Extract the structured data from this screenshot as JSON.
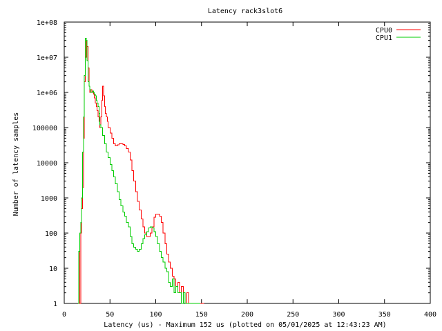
{
  "chart_data": {
    "type": "line",
    "title": "Latency rack3slot6",
    "xlabel": "Latency (us) - Maximum 152 us (plotted on 05/01/2025 at 12:43:23 AM)",
    "ylabel": "Number of latency samples",
    "xlim": [
      0,
      400
    ],
    "ylim": [
      1,
      100000000
    ],
    "y_scale": "log",
    "grid": false,
    "legend_position": "top-right",
    "x_ticks": [
      0,
      50,
      100,
      150,
      200,
      250,
      300,
      350,
      400
    ],
    "y_ticks": [
      {
        "value": 1,
        "label": "1"
      },
      {
        "value": 10,
        "label": "10"
      },
      {
        "value": 100,
        "label": "100"
      },
      {
        "value": 1000,
        "label": "1000"
      },
      {
        "value": 10000,
        "label": "10000"
      },
      {
        "value": 100000,
        "label": "100000"
      },
      {
        "value": 1000000,
        "label": "1e+06"
      },
      {
        "value": 10000000,
        "label": "1e+07"
      },
      {
        "value": 100000000,
        "label": "1e+08"
      }
    ],
    "series": [
      {
        "name": "CPU0",
        "color": "#ff0000",
        "points": [
          [
            15,
            1
          ],
          [
            16,
            30
          ],
          [
            17,
            1
          ],
          [
            18,
            100
          ],
          [
            19,
            500
          ],
          [
            20,
            2000
          ],
          [
            21,
            50000
          ],
          [
            22,
            2000000
          ],
          [
            23,
            10000000
          ],
          [
            24,
            30000000
          ],
          [
            25,
            20000000
          ],
          [
            26,
            5000000
          ],
          [
            27,
            1500000
          ],
          [
            28,
            1000000
          ],
          [
            29,
            1200000
          ],
          [
            30,
            1000000
          ],
          [
            31,
            1000000
          ],
          [
            32,
            900000
          ],
          [
            33,
            700000
          ],
          [
            34,
            500000
          ],
          [
            35,
            400000
          ],
          [
            36,
            300000
          ],
          [
            37,
            200000
          ],
          [
            38,
            150000
          ],
          [
            39,
            100000
          ],
          [
            40,
            200000
          ],
          [
            41,
            600000
          ],
          [
            42,
            1500000
          ],
          [
            43,
            800000
          ],
          [
            44,
            400000
          ],
          [
            45,
            250000
          ],
          [
            46,
            200000
          ],
          [
            47,
            150000
          ],
          [
            48,
            100000
          ],
          [
            50,
            70000
          ],
          [
            52,
            50000
          ],
          [
            54,
            35000
          ],
          [
            56,
            30000
          ],
          [
            58,
            32000
          ],
          [
            60,
            35000
          ],
          [
            62,
            35000
          ],
          [
            64,
            33000
          ],
          [
            66,
            30000
          ],
          [
            68,
            25000
          ],
          [
            70,
            20000
          ],
          [
            72,
            12000
          ],
          [
            74,
            6000
          ],
          [
            76,
            3000
          ],
          [
            78,
            1500
          ],
          [
            80,
            800
          ],
          [
            82,
            450
          ],
          [
            84,
            250
          ],
          [
            86,
            150
          ],
          [
            88,
            100
          ],
          [
            90,
            80
          ],
          [
            92,
            80
          ],
          [
            94,
            100
          ],
          [
            96,
            150
          ],
          [
            98,
            280
          ],
          [
            100,
            350
          ],
          [
            102,
            350
          ],
          [
            104,
            300
          ],
          [
            106,
            200
          ],
          [
            108,
            100
          ],
          [
            110,
            50
          ],
          [
            112,
            25
          ],
          [
            114,
            15
          ],
          [
            116,
            10
          ],
          [
            118,
            6
          ],
          [
            120,
            5
          ],
          [
            122,
            3
          ],
          [
            124,
            4
          ],
          [
            126,
            2
          ],
          [
            128,
            3
          ],
          [
            130,
            2
          ],
          [
            132,
            1
          ],
          [
            134,
            2
          ],
          [
            136,
            1
          ],
          [
            138,
            1
          ],
          [
            140,
            1
          ],
          [
            142,
            1
          ],
          [
            144,
            1
          ],
          [
            152,
            1
          ]
        ]
      },
      {
        "name": "CPU1",
        "color": "#00cc00",
        "points": [
          [
            15,
            1
          ],
          [
            16,
            30
          ],
          [
            17,
            100
          ],
          [
            18,
            200
          ],
          [
            19,
            1000
          ],
          [
            20,
            20000
          ],
          [
            21,
            200000
          ],
          [
            22,
            3000000
          ],
          [
            23,
            35000000
          ],
          [
            24,
            30000000
          ],
          [
            25,
            8000000
          ],
          [
            26,
            2000000
          ],
          [
            27,
            1500000
          ],
          [
            28,
            1200000
          ],
          [
            29,
            1000000
          ],
          [
            30,
            1000000
          ],
          [
            31,
            1100000
          ],
          [
            32,
            1000000
          ],
          [
            33,
            900000
          ],
          [
            34,
            800000
          ],
          [
            35,
            600000
          ],
          [
            36,
            500000
          ],
          [
            37,
            400000
          ],
          [
            38,
            250000
          ],
          [
            39,
            120000
          ],
          [
            40,
            100000
          ],
          [
            42,
            60000
          ],
          [
            44,
            35000
          ],
          [
            46,
            20000
          ],
          [
            48,
            14000
          ],
          [
            50,
            9000
          ],
          [
            52,
            6000
          ],
          [
            54,
            4000
          ],
          [
            56,
            2500
          ],
          [
            58,
            1500
          ],
          [
            60,
            900
          ],
          [
            62,
            600
          ],
          [
            64,
            400
          ],
          [
            66,
            300
          ],
          [
            68,
            200
          ],
          [
            70,
            150
          ],
          [
            72,
            80
          ],
          [
            74,
            50
          ],
          [
            76,
            40
          ],
          [
            78,
            35
          ],
          [
            80,
            30
          ],
          [
            82,
            35
          ],
          [
            84,
            50
          ],
          [
            86,
            70
          ],
          [
            88,
            90
          ],
          [
            90,
            110
          ],
          [
            92,
            140
          ],
          [
            94,
            150
          ],
          [
            96,
            140
          ],
          [
            98,
            110
          ],
          [
            100,
            80
          ],
          [
            102,
            50
          ],
          [
            104,
            30
          ],
          [
            106,
            20
          ],
          [
            108,
            15
          ],
          [
            110,
            10
          ],
          [
            112,
            8
          ],
          [
            114,
            4
          ],
          [
            116,
            3
          ],
          [
            118,
            5
          ],
          [
            120,
            2
          ],
          [
            122,
            3
          ],
          [
            124,
            2
          ],
          [
            126,
            2
          ],
          [
            128,
            1
          ],
          [
            130,
            2
          ],
          [
            132,
            1
          ],
          [
            136,
            1
          ],
          [
            140,
            1
          ],
          [
            148,
            1
          ]
        ]
      }
    ]
  }
}
